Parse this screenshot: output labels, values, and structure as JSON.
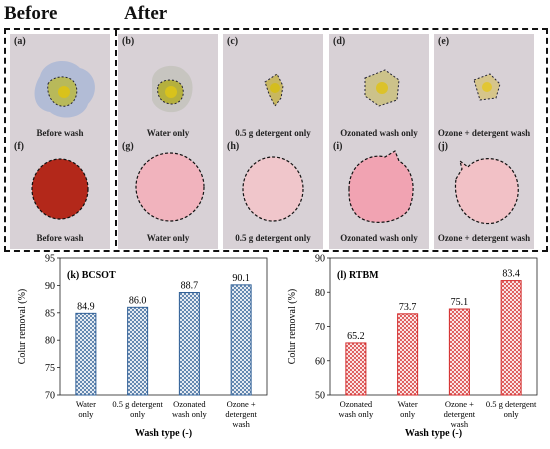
{
  "headers": {
    "before": "Before",
    "after": "After"
  },
  "panels": [
    {
      "label": "(a)",
      "caption": "Before wash"
    },
    {
      "label": "(b)",
      "caption": "Water only"
    },
    {
      "label": "(c)",
      "caption": "0.5 g detergent only"
    },
    {
      "label": "(d)",
      "caption": "Ozonated wash only"
    },
    {
      "label": "(e)",
      "caption": "Ozone + detergent wash"
    },
    {
      "label": "(f)",
      "caption": "Before wash"
    },
    {
      "label": "(g)",
      "caption": "Water only"
    },
    {
      "label": "(h)",
      "caption": "0.5 g detergent only"
    },
    {
      "label": "(i)",
      "caption": "Ozonated wash only"
    },
    {
      "label": "(j)",
      "caption": "Ozone + detergent wash"
    }
  ],
  "colors": {
    "bcsot": "#2f5f96",
    "rtbm": "#d42a2a"
  },
  "chart_data": [
    {
      "type": "bar",
      "panel_label": "(k)",
      "title": "BCSOT",
      "categories": [
        [
          "Water",
          "only"
        ],
        [
          "0.5 g detergent",
          "only"
        ],
        [
          "Ozonated",
          "wash only"
        ],
        [
          "Ozone +",
          "detergent",
          "wash"
        ]
      ],
      "values": [
        84.9,
        86.0,
        88.7,
        90.1
      ],
      "value_labels": [
        "84.9",
        "86.0",
        "88.7",
        "90.1"
      ],
      "xlabel": "Wash type (-)",
      "ylabel": "Colur removal (%)",
      "ylim": [
        70,
        95
      ],
      "yticks": [
        "70",
        "75",
        "80",
        "85",
        "90",
        "95"
      ],
      "color": "#2f5f96",
      "pattern": "crosshatch"
    },
    {
      "type": "bar",
      "panel_label": "(l)",
      "title": "RTBM",
      "categories": [
        [
          "Ozonated",
          "wash only"
        ],
        [
          "Water",
          "only"
        ],
        [
          "Ozone +",
          "detergent",
          "wash"
        ],
        [
          "0.5 g detergent",
          "only"
        ]
      ],
      "values": [
        65.2,
        73.7,
        75.1,
        83.4
      ],
      "value_labels": [
        "65.2",
        "73.7",
        "75.1",
        "83.4"
      ],
      "xlabel": "Wash type (-)",
      "ylabel": "Colur removal (%)",
      "ylim": [
        50,
        90
      ],
      "yticks": [
        "50",
        "60",
        "70",
        "80",
        "90"
      ],
      "color": "#d42a2a",
      "pattern": "crosshatch"
    }
  ]
}
